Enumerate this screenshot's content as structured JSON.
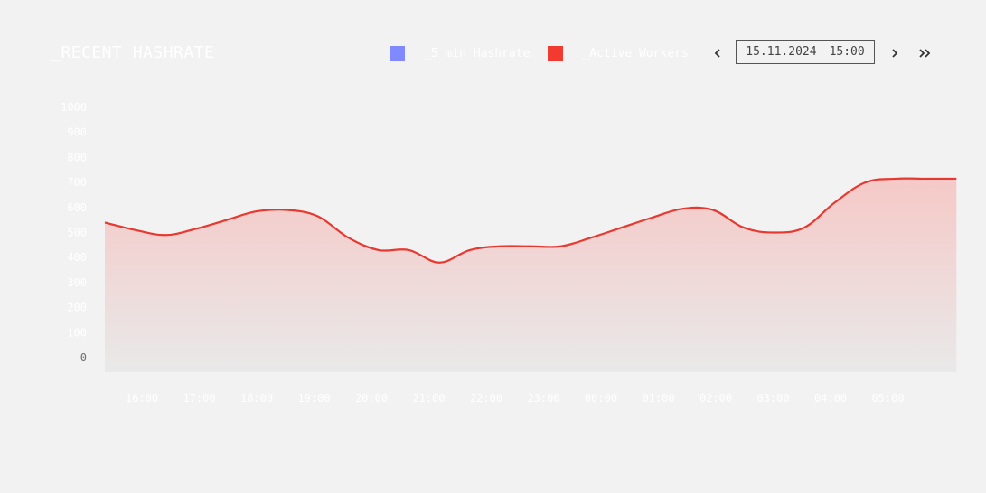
{
  "header": {
    "title": "_RECENT HASHRATE",
    "date": "15.11.2024",
    "time": "15:00"
  },
  "legend": [
    {
      "label": "_5 min Hashrate",
      "color": "#8089ff"
    },
    {
      "label": "_Active Workers",
      "color": "#f23a30"
    }
  ],
  "nav": {
    "prev_icon": "chevron-left-icon",
    "next_icon": "chevron-right-icon",
    "latest_icon": "double-chevron-right-icon"
  },
  "colors": {
    "line": "#e8382f",
    "area_top": "#f5c9c7",
    "background": "#f2f2f2",
    "faint_text": "#ffffff",
    "zero_label": "#6f6f6f"
  },
  "chart_data": {
    "type": "area",
    "y_ticks": [
      "0",
      "100",
      "200",
      "300",
      "400",
      "500",
      "600",
      "700",
      "800",
      "900",
      "1000"
    ],
    "ylim": [
      0,
      1000
    ],
    "x_labels": [
      "16:00",
      "17:00",
      "18:00",
      "19:00",
      "20:00",
      "21:00",
      "22:00",
      "23:00",
      "00:00",
      "01:00",
      "02:00",
      "03:00",
      "04:00",
      "05:00"
    ],
    "grid": false,
    "series": [
      {
        "name": "_Active Workers",
        "x": [
          0,
          0.5,
          1,
          1.5,
          2,
          2.5,
          3,
          3.5,
          4,
          4.5,
          5,
          5.5,
          6,
          6.5,
          7,
          7.5,
          8,
          8.5,
          9,
          9.5,
          10,
          10.5,
          11,
          11.5,
          12,
          12.5,
          13,
          13.5,
          14
        ],
        "values": [
          540,
          510,
          490,
          515,
          550,
          585,
          590,
          565,
          480,
          430,
          430,
          380,
          430,
          445,
          445,
          445,
          480,
          520,
          560,
          595,
          590,
          520,
          500,
          520,
          620,
          700,
          715,
          715,
          715
        ]
      }
    ]
  }
}
